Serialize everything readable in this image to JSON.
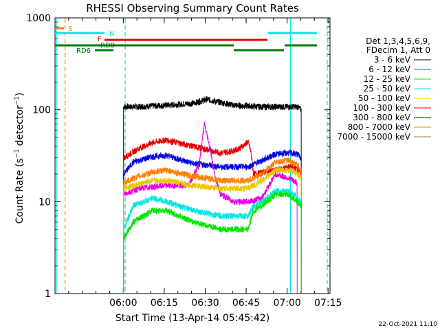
{
  "chart_data": {
    "type": "line",
    "title": "RHESSI Observing Summary Count Rates",
    "xlabel": "Start Time (13-Apr-14 05:45:42)",
    "ylabel_main": "Count Rate (s",
    "ylabel_sup": "−1",
    "ylabel_mid": " detector",
    "ylabel_sup2": "−1",
    "ylabel_end": ")",
    "y_scale": "log",
    "ylim": [
      1,
      1000
    ],
    "xlim_minutes": [
      -10.7,
      90
    ],
    "x_ticks": [
      {
        "label": "06:00",
        "value": 14.3
      },
      {
        "label": "06:15",
        "value": 29.3
      },
      {
        "label": "06:30",
        "value": 44.3
      },
      {
        "label": "06:45",
        "value": 59.3
      },
      {
        "label": "07:00",
        "value": 74.3
      },
      {
        "label": "07:15",
        "value": 89.3
      }
    ],
    "y_ticks": [
      {
        "label": "1",
        "value": 1
      },
      {
        "label": "10",
        "value": 10
      },
      {
        "label": "100",
        "value": 100
      },
      {
        "label": "1000",
        "value": 1000
      }
    ],
    "legend": {
      "header": [
        "Det 1,3,4,5,6,9,",
        "FDecim 1, Att 0"
      ],
      "entries": [
        {
          "label": "3 - 6 keV",
          "color": "#000000"
        },
        {
          "label": "6 - 12 keV",
          "color": "#e600e6"
        },
        {
          "label": "12 - 25 keV",
          "color": "#00e600"
        },
        {
          "label": "25 - 50 keV",
          "color": "#00e6e6"
        },
        {
          "label": "50 - 100 keV",
          "color": "#e6c800"
        },
        {
          "label": "100 - 300 keV",
          "color": "#e60000"
        },
        {
          "label": "300 - 800 keV",
          "color": "#0000e6"
        },
        {
          "label": "800 - 7000 keV",
          "color": "#ff7f00"
        },
        {
          "label": "7000 - 15000 keV",
          "color": "#a07a3c"
        }
      ]
    },
    "flags": [
      {
        "label": "S",
        "color": "#ff7f00"
      },
      {
        "label": "N",
        "color": "#00e6e6"
      },
      {
        "label": "F",
        "color": "#e60000"
      },
      {
        "label": "RD0",
        "color": "#007800"
      },
      {
        "label": "RD6",
        "color": "#007800"
      }
    ],
    "series": [
      {
        "label_ref": 0,
        "color": "#000000",
        "x": [
          14.4,
          20,
          30,
          40,
          45,
          50,
          55,
          60,
          65,
          70,
          75,
          78,
          79.5
        ],
        "y": [
          108,
          108,
          112,
          118,
          130,
          120,
          112,
          110,
          108,
          108,
          108,
          108,
          100
        ]
      },
      {
        "label_ref": 5,
        "color": "#e60000",
        "x": [
          14.4,
          20,
          25,
          30,
          40,
          50,
          55,
          58,
          60,
          61,
          62,
          70,
          75,
          78,
          79.5
        ],
        "y": [
          30,
          38,
          44,
          47,
          40,
          34,
          36,
          40,
          45,
          35,
          20,
          22,
          24,
          23,
          20
        ]
      },
      {
        "label_ref": 6,
        "color": "#0000e6",
        "x": [
          14.4,
          18,
          25,
          30,
          40,
          50,
          55,
          60,
          65,
          70,
          75,
          78,
          79.5
        ],
        "y": [
          20,
          27,
          31,
          32,
          26,
          24,
          24,
          24,
          28,
          33,
          34,
          33,
          30
        ]
      },
      {
        "label_ref": 1,
        "color": "#e600e6",
        "x": [
          14.4,
          20,
          30,
          38,
          42,
          44,
          46,
          48,
          50,
          55,
          60,
          65,
          70,
          75,
          78
        ],
        "y": [
          12,
          14,
          15,
          15,
          25,
          70,
          40,
          18,
          12,
          10,
          10,
          11,
          20,
          18,
          16
        ]
      },
      {
        "label_ref": 7,
        "color": "#ff7f00",
        "x": [
          14.4,
          18,
          25,
          30,
          40,
          50,
          55,
          60,
          65,
          70,
          75,
          78,
          79.5
        ],
        "y": [
          16,
          18,
          21,
          22,
          19,
          17,
          17,
          17,
          20,
          27,
          28,
          25,
          22
        ]
      },
      {
        "label_ref": 4,
        "color": "#e6c800",
        "x": [
          14.4,
          18,
          25,
          30,
          40,
          50,
          55,
          60,
          65,
          70,
          75,
          78,
          79.5
        ],
        "y": [
          14,
          15,
          17,
          17,
          15,
          14,
          14,
          14,
          17,
          22,
          22,
          20,
          18
        ]
      },
      {
        "label_ref": 3,
        "color": "#00e6e6",
        "x": [
          14.4,
          18,
          25,
          30,
          40,
          50,
          55,
          60,
          62,
          65,
          70,
          75,
          78,
          79.5
        ],
        "y": [
          5,
          9,
          11,
          10,
          8,
          7,
          7,
          7,
          9,
          10,
          13,
          13,
          11,
          10
        ]
      },
      {
        "label_ref": 2,
        "color": "#00e600",
        "x": [
          14.4,
          18,
          25,
          30,
          40,
          50,
          55,
          60,
          62,
          65,
          70,
          75,
          78,
          79.5
        ],
        "y": [
          4,
          6,
          8,
          8,
          6,
          5,
          5,
          5,
          8,
          9,
          12,
          12,
          10,
          9
        ]
      }
    ],
    "vertical_lines": [
      {
        "x": -10.2,
        "color": "#00e6e6",
        "style": "solid"
      },
      {
        "x": -7.0,
        "color": "#ff7f00",
        "style": "dashed"
      },
      {
        "x": 15.0,
        "color": "#00e6e6",
        "style": "dashed"
      },
      {
        "x": 75.5,
        "color": "#00e6e6",
        "style": "solid"
      },
      {
        "x": 89.0,
        "color": "#00e6e6",
        "style": "dashed"
      }
    ]
  },
  "footer": {
    "date": "22-Oct-2021 11:10"
  }
}
